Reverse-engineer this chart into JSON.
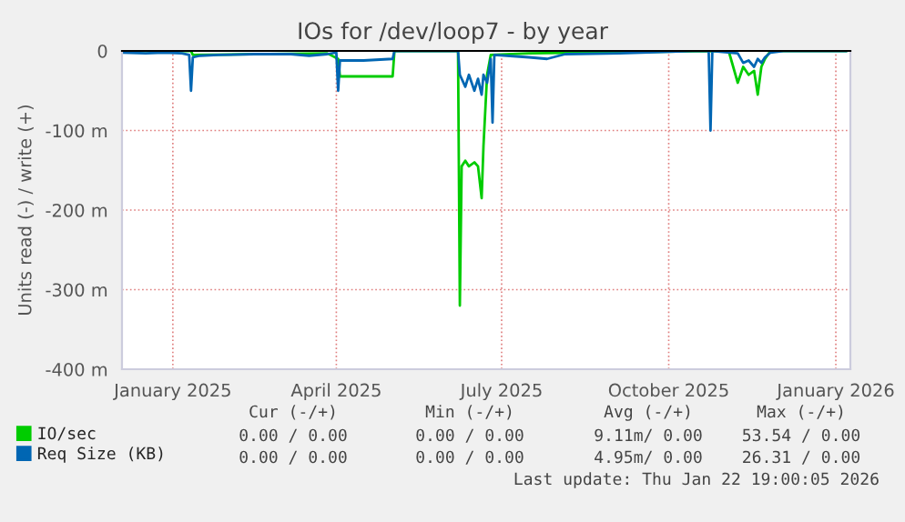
{
  "chart_data": {
    "type": "line",
    "title": "IOs for /dev/loop7 - by year",
    "ylabel": "Units read (-) / write (+)",
    "xlim": [
      "2024-12-04",
      "2026-01-09"
    ],
    "xticks": [
      {
        "value": "2025-01-01",
        "label": "January 2025"
      },
      {
        "value": "2025-04-01",
        "label": "April 2025"
      },
      {
        "value": "2025-07-01",
        "label": "July 2025"
      },
      {
        "value": "2025-10-01",
        "label": "October 2025"
      },
      {
        "value": "2026-01-01",
        "label": "January 2026"
      }
    ],
    "ylim": [
      -400,
      0
    ],
    "yticks": [
      {
        "value": -400,
        "label": "-400 m"
      },
      {
        "value": -300,
        "label": "-300 m"
      },
      {
        "value": -200,
        "label": "-200 m"
      },
      {
        "value": -100,
        "label": "-100 m"
      },
      0
    ],
    "grid": true,
    "legend": "bottom left",
    "series": [
      {
        "name": "IO/sec",
        "color": "#00cc00",
        "x": [
          "2024-12-04",
          "2025-01-11",
          "2025-01-12",
          "2025-03-27",
          "2025-04-02",
          "2025-04-03",
          "2025-05-02",
          "2025-05-03",
          "2025-06-07",
          "2025-06-08",
          "2025-06-09",
          "2025-06-11",
          "2025-06-13",
          "2025-06-16",
          "2025-06-18",
          "2025-06-20",
          "2025-06-21",
          "2025-06-23",
          "2025-06-25",
          "2025-07-16",
          "2025-11-03",
          "2025-11-08",
          "2025-11-11",
          "2025-11-14",
          "2025-11-17",
          "2025-11-19",
          "2025-11-21",
          "2025-11-23",
          "2025-11-26",
          "2026-01-07"
        ],
        "values": [
          0,
          0,
          -5,
          -3,
          -10,
          -32,
          -32,
          0,
          0,
          -320,
          -145,
          -138,
          -145,
          -140,
          -145,
          -185,
          -120,
          -30,
          -5,
          -3,
          0,
          -40,
          -20,
          -30,
          -25,
          -55,
          -20,
          -10,
          0,
          0
        ]
      },
      {
        "name": "Req Size (KB)",
        "color": "#0066b3",
        "x": [
          "2024-12-04",
          "2024-12-17",
          "2024-12-27",
          "2025-01-06",
          "2025-01-10",
          "2025-01-11",
          "2025-01-12",
          "2025-01-16",
          "2025-01-26",
          "2025-02-15",
          "2025-03-07",
          "2025-03-17",
          "2025-03-27",
          "2025-04-01",
          "2025-04-02",
          "2025-04-03",
          "2025-04-16",
          "2025-05-02",
          "2025-05-03",
          "2025-05-26",
          "2025-06-07",
          "2025-06-08",
          "2025-06-11",
          "2025-06-13",
          "2025-06-16",
          "2025-06-18",
          "2025-06-20",
          "2025-06-21",
          "2025-06-23",
          "2025-06-25",
          "2025-06-26",
          "2025-06-27",
          "2025-07-16",
          "2025-07-26",
          "2025-08-05",
          "2025-09-04",
          "2025-10-14",
          "2025-10-23",
          "2025-10-24",
          "2025-10-25",
          "2025-11-08",
          "2025-11-11",
          "2025-11-14",
          "2025-11-17",
          "2025-11-19",
          "2025-11-21",
          "2025-11-23",
          "2025-11-26",
          "2025-12-03",
          "2026-01-07"
        ],
        "values": [
          -2,
          -3,
          -2,
          -3,
          -5,
          -50,
          -8,
          -6,
          -5,
          -4,
          -4,
          -6,
          -4,
          -2,
          -50,
          -12,
          -12,
          -10,
          0,
          0,
          0,
          -30,
          -45,
          -30,
          -50,
          -35,
          -55,
          -30,
          -40,
          -10,
          -90,
          -5,
          -8,
          -10,
          -4,
          -3,
          0,
          0,
          -100,
          0,
          -3,
          -15,
          -12,
          -20,
          -10,
          -15,
          -8,
          -2,
          0,
          0
        ]
      }
    ],
    "annotations": [
      "Cur (-/+)",
      "Min (-/+)",
      "Avg (-/+)",
      "Max (-/+)",
      "0.00 / 0.00",
      "0.00 / 0.00",
      "9.11m/ 0.00",
      "53.54 / 0.00",
      "0.00 / 0.00",
      "0.00 / 0.00",
      "4.95m/ 0.00",
      "26.31 / 0.00",
      "Last update: Thu Jan 22 19:00:05 2026"
    ]
  }
}
